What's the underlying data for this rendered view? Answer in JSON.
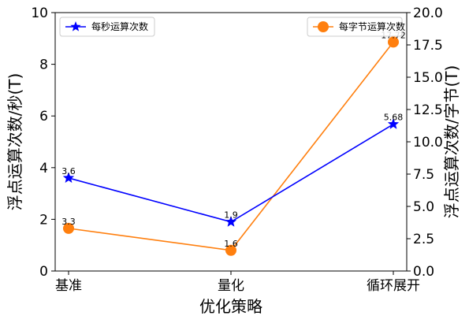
{
  "chart_data": {
    "type": "line",
    "title": "",
    "xlabel": "优化策略",
    "ylabel_left": "浮点运算次数/秒(T)",
    "ylabel_right": "浮点运算次数/字节(T)",
    "categories": [
      "基准",
      "量化",
      "循环展开"
    ],
    "ylim_left": [
      0,
      10
    ],
    "ylim_right": [
      0,
      20
    ],
    "yticks_left": [
      0,
      2,
      4,
      6,
      8,
      10
    ],
    "yticks_right": [
      0.0,
      2.5,
      5.0,
      7.5,
      10.0,
      12.5,
      15.0,
      17.5,
      20.0
    ],
    "ytick_labels_left": [
      "0",
      "2",
      "4",
      "6",
      "8",
      "10"
    ],
    "ytick_labels_right": [
      "0.0",
      "2.5",
      "5.0",
      "7.5",
      "10.0",
      "12.5",
      "15.0",
      "17.5",
      "20.0"
    ],
    "grid": false,
    "series": [
      {
        "name": "每秒运算次数",
        "axis": "left",
        "values": [
          3.6,
          1.9,
          5.68
        ],
        "labels": [
          "3.6",
          "1.9",
          "5.68"
        ],
        "color": "#0000ff",
        "marker": "star",
        "legend_position": "top-left"
      },
      {
        "name": "每字节运算次数",
        "axis": "right",
        "values": [
          3.3,
          1.6,
          17.72
        ],
        "labels": [
          "3.3",
          "1.6",
          "17.72"
        ],
        "color": "#ff7f0e",
        "marker": "circle",
        "legend_position": "top-right"
      }
    ]
  }
}
